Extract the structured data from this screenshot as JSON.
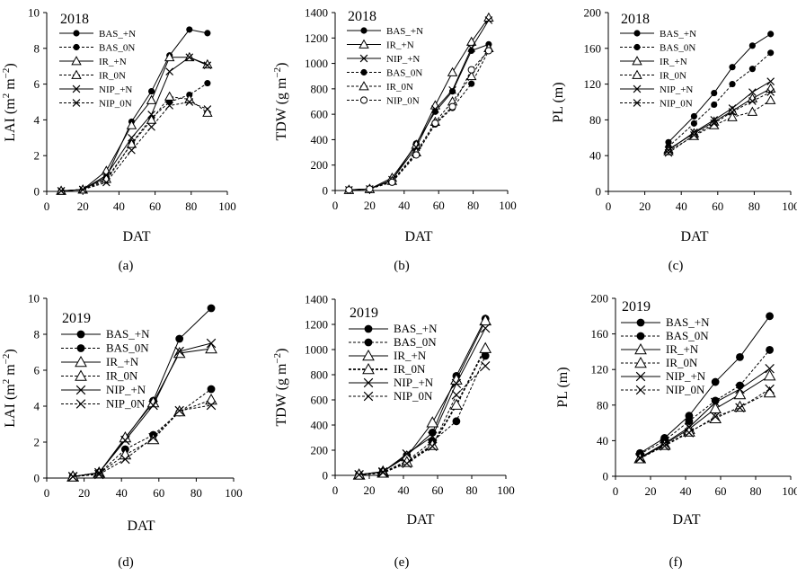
{
  "chart_data": [
    {
      "panel": "a",
      "type": "line",
      "year": "2018",
      "xlabel": "DAT",
      "ylabel": "LAI (m2 m−2)",
      "ylabel_parts": [
        "LAI (m",
        "2",
        " m",
        "−2",
        ")"
      ],
      "xlim": [
        0,
        100
      ],
      "ylim": [
        0,
        10
      ],
      "xticks": [
        0,
        20,
        40,
        60,
        80,
        100
      ],
      "yticks": [
        0,
        2,
        4,
        6,
        8,
        10
      ],
      "series": [
        {
          "name": "BAS_+N",
          "dash": false,
          "marker": "dot",
          "x": [
            8,
            20,
            33,
            47,
            58,
            68,
            79,
            89
          ],
          "y": [
            0.03,
            0.1,
            0.8,
            3.9,
            5.6,
            7.6,
            9.05,
            8.85
          ]
        },
        {
          "name": "BAS_0N",
          "dash": true,
          "marker": "dot",
          "x": [
            8,
            20,
            33,
            47,
            58,
            68,
            79,
            89
          ],
          "y": [
            0.03,
            0.1,
            0.6,
            2.7,
            4.1,
            5.0,
            5.4,
            6.05
          ]
        },
        {
          "name": "IR_+N",
          "dash": false,
          "marker": "triangle",
          "x": [
            8,
            20,
            33,
            47,
            58,
            68,
            79,
            89
          ],
          "y": [
            0.03,
            0.1,
            1.15,
            3.7,
            5.1,
            7.5,
            7.5,
            7.1
          ]
        },
        {
          "name": "IR_0N",
          "dash": true,
          "marker": "triangle",
          "x": [
            8,
            20,
            33,
            47,
            58,
            68,
            79,
            89
          ],
          "y": [
            0.03,
            0.1,
            0.7,
            2.65,
            4.0,
            5.3,
            5.15,
            4.4
          ]
        },
        {
          "name": "NIP_+N",
          "dash": false,
          "marker": "cross",
          "x": [
            8,
            20,
            33,
            47,
            58,
            68,
            79,
            89
          ],
          "y": [
            0.03,
            0.1,
            0.9,
            3.0,
            4.3,
            6.7,
            7.5,
            7.05
          ]
        },
        {
          "name": "NIP_0N",
          "dash": true,
          "marker": "cross",
          "x": [
            8,
            20,
            33,
            47,
            58,
            68,
            79,
            89
          ],
          "y": [
            0.03,
            0.1,
            0.5,
            2.3,
            3.6,
            4.8,
            5.0,
            4.6
          ]
        }
      ]
    },
    {
      "panel": "b",
      "type": "line",
      "year": "2018",
      "xlabel": "DAT",
      "ylabel": "TDW (g m−2)",
      "ylabel_parts": [
        "TDW (g m",
        "−2",
        ")"
      ],
      "xlim": [
        0,
        100
      ],
      "ylim": [
        0,
        1400
      ],
      "xticks": [
        0,
        20,
        40,
        60,
        80,
        100
      ],
      "yticks": [
        0,
        200,
        400,
        600,
        800,
        1000,
        1200,
        1400
      ],
      "series": [
        {
          "name": "BAS_+N",
          "dash": false,
          "marker": "dot",
          "x": [
            8,
            20,
            33,
            47,
            58,
            68,
            79,
            89
          ],
          "y": [
            5,
            12,
            80,
            370,
            620,
            780,
            1100,
            1150
          ]
        },
        {
          "name": "IR_+N",
          "dash": false,
          "marker": "triangle",
          "x": [
            8,
            20,
            33,
            47,
            58,
            68,
            79,
            89
          ],
          "y": [
            5,
            12,
            100,
            360,
            670,
            930,
            1170,
            1360
          ]
        },
        {
          "name": "NIP_+N",
          "dash": false,
          "marker": "cross",
          "x": [
            8,
            20,
            33,
            47,
            58,
            68,
            79,
            89
          ],
          "y": [
            5,
            12,
            85,
            340,
            640,
            790,
            1120,
            1340
          ]
        },
        {
          "name": "BAS_0N",
          "dash": true,
          "marker": "dot",
          "x": [
            8,
            20,
            33,
            47,
            58,
            68,
            79,
            89
          ],
          "y": [
            5,
            12,
            70,
            290,
            520,
            650,
            840,
            1100
          ]
        },
        {
          "name": "IR_0N",
          "dash": true,
          "marker": "triangle",
          "x": [
            8,
            20,
            33,
            47,
            58,
            68,
            79,
            89
          ],
          "y": [
            5,
            12,
            75,
            300,
            540,
            700,
            900,
            1120
          ]
        },
        {
          "name": "NIP_0N",
          "dash": true,
          "marker": "circle",
          "x": [
            8,
            20,
            33,
            47,
            58,
            68,
            79,
            89
          ],
          "y": [
            5,
            12,
            65,
            280,
            530,
            660,
            950,
            1100
          ]
        }
      ]
    },
    {
      "panel": "c",
      "type": "line",
      "year": "2018",
      "xlabel": "DAT",
      "ylabel": "PL (m)",
      "ylabel_parts": [
        "PL (m)"
      ],
      "xlim": [
        0,
        100
      ],
      "ylim": [
        0,
        200
      ],
      "xticks": [
        0,
        20,
        40,
        60,
        80,
        100
      ],
      "yticks": [
        0,
        40,
        80,
        120,
        160,
        200
      ],
      "series": [
        {
          "name": "BAS_+N",
          "dash": false,
          "marker": "dot",
          "x": [
            33,
            47,
            58,
            68,
            79,
            89
          ],
          "y": [
            55,
            84,
            110,
            139,
            163,
            176
          ]
        },
        {
          "name": "BAS_0N",
          "dash": true,
          "marker": "dot",
          "x": [
            33,
            47,
            58,
            68,
            79,
            89
          ],
          "y": [
            50,
            76,
            97,
            120,
            137,
            155
          ]
        },
        {
          "name": "IR_+N",
          "dash": false,
          "marker": "triangle",
          "x": [
            33,
            47,
            58,
            68,
            79,
            89
          ],
          "y": [
            47,
            65,
            78,
            90,
            104,
            115
          ]
        },
        {
          "name": "IR_0N",
          "dash": true,
          "marker": "triangle",
          "x": [
            33,
            47,
            58,
            68,
            79,
            89
          ],
          "y": [
            45,
            62,
            74,
            83,
            89,
            102
          ]
        },
        {
          "name": "NIP_+N",
          "dash": false,
          "marker": "cross",
          "x": [
            33,
            47,
            58,
            68,
            79,
            89
          ],
          "y": [
            46,
            66,
            80,
            93,
            111,
            123
          ]
        },
        {
          "name": "NIP_0N",
          "dash": true,
          "marker": "cross",
          "x": [
            33,
            47,
            58,
            68,
            79,
            89
          ],
          "y": [
            43,
            63,
            76,
            89,
            101,
            111
          ]
        }
      ]
    },
    {
      "panel": "d",
      "type": "line",
      "year": "2019",
      "xlabel": "DAT",
      "ylabel": "LAI (m2 m−2)",
      "ylabel_parts": [
        "LAI (m",
        "2",
        " m",
        "−2",
        ")"
      ],
      "xlim": [
        0,
        100
      ],
      "ylim": [
        0,
        10
      ],
      "xticks": [
        0,
        20,
        40,
        60,
        80,
        100
      ],
      "yticks": [
        0,
        2,
        4,
        6,
        8,
        10
      ],
      "series": [
        {
          "name": "BAS_+N",
          "dash": false,
          "marker": "dot",
          "x": [
            14,
            28,
            42,
            57,
            71,
            88
          ],
          "y": [
            0.08,
            0.3,
            2.2,
            4.3,
            7.75,
            9.45
          ]
        },
        {
          "name": "BAS_0N",
          "dash": true,
          "marker": "dot",
          "x": [
            14,
            28,
            42,
            57,
            71,
            88
          ],
          "y": [
            0.08,
            0.25,
            1.6,
            2.4,
            3.65,
            4.95
          ]
        },
        {
          "name": "IR_+N",
          "dash": false,
          "marker": "triangle",
          "x": [
            14,
            28,
            42,
            57,
            71,
            88
          ],
          "y": [
            0.08,
            0.3,
            2.25,
            4.2,
            6.95,
            7.2
          ]
        },
        {
          "name": "IR_0N",
          "dash": true,
          "marker": "triangle",
          "x": [
            14,
            28,
            42,
            57,
            71,
            88
          ],
          "y": [
            0.08,
            0.25,
            1.3,
            2.15,
            3.7,
            4.35
          ]
        },
        {
          "name": "NIP_+N",
          "dash": false,
          "marker": "cross",
          "x": [
            14,
            28,
            42,
            57,
            71,
            88
          ],
          "y": [
            0.08,
            0.3,
            2.1,
            4.05,
            7.05,
            7.5
          ]
        },
        {
          "name": "NIP_0N",
          "dash": true,
          "marker": "cross",
          "x": [
            14,
            28,
            42,
            57,
            71,
            88
          ],
          "y": [
            0.08,
            0.2,
            1.05,
            2.25,
            3.75,
            4.05
          ]
        }
      ]
    },
    {
      "panel": "e",
      "type": "line",
      "year": "2019",
      "xlabel": "DAT",
      "ylabel": "TDW (g m−2)",
      "ylabel_parts": [
        "TDW (g m",
        "−2",
        ")"
      ],
      "xlim": [
        0,
        100
      ],
      "ylim": [
        0,
        1400
      ],
      "xticks": [
        0,
        20,
        40,
        60,
        80,
        100
      ],
      "yticks": [
        0,
        200,
        400,
        600,
        800,
        1000,
        1200,
        1400
      ],
      "series": [
        {
          "name": "BAS_+N",
          "dash": false,
          "marker": "dot",
          "x": [
            14,
            28,
            42,
            57,
            71,
            88
          ],
          "y": [
            5,
            30,
            160,
            340,
            790,
            1245
          ]
        },
        {
          "name": "BAS_0N",
          "dash": true,
          "marker": "dot",
          "x": [
            14,
            28,
            42,
            57,
            71,
            88
          ],
          "y": [
            5,
            25,
            115,
            270,
            430,
            950
          ]
        },
        {
          "name": "IR_+N",
          "dash": false,
          "marker": "triangle",
          "x": [
            14,
            28,
            42,
            57,
            71,
            88
          ],
          "y": [
            5,
            30,
            150,
            420,
            760,
            1230
          ]
        },
        {
          "name": "IR_0N",
          "dash": true,
          "bold": true,
          "marker": "triangle",
          "x": [
            14,
            28,
            42,
            57,
            71,
            88
          ],
          "y": [
            5,
            20,
            105,
            240,
            560,
            1010
          ]
        },
        {
          "name": "NIP_+N",
          "dash": false,
          "marker": "cross",
          "x": [
            14,
            28,
            42,
            57,
            71,
            88
          ],
          "y": [
            5,
            28,
            170,
            310,
            730,
            1170
          ]
        },
        {
          "name": "NIP_0N",
          "dash": true,
          "marker": "cross",
          "x": [
            14,
            28,
            42,
            57,
            71,
            88
          ],
          "y": [
            5,
            22,
            95,
            230,
            640,
            870
          ]
        }
      ]
    },
    {
      "panel": "f",
      "type": "line",
      "year": "2019",
      "xlabel": "DAT",
      "ylabel": "PL (m)",
      "ylabel_parts": [
        "PL (m)"
      ],
      "xlim": [
        0,
        100
      ],
      "ylim": [
        0,
        200
      ],
      "xticks": [
        0,
        20,
        40,
        60,
        80,
        100
      ],
      "yticks": [
        0,
        40,
        80,
        120,
        160,
        200
      ],
      "series": [
        {
          "name": "BAS_+N",
          "dash": false,
          "marker": "dot",
          "x": [
            14,
            28,
            42,
            57,
            71,
            88
          ],
          "y": [
            26,
            43,
            68,
            106,
            134,
            180
          ]
        },
        {
          "name": "BAS_0N",
          "dash": true,
          "marker": "dot",
          "x": [
            14,
            28,
            42,
            57,
            71,
            88
          ],
          "y": [
            25,
            40,
            62,
            85,
            102,
            142
          ]
        },
        {
          "name": "IR_+N",
          "dash": false,
          "marker": "triangle",
          "x": [
            14,
            28,
            42,
            57,
            71,
            88
          ],
          "y": [
            20,
            36,
            53,
            76,
            92,
            113
          ]
        },
        {
          "name": "IR_0N",
          "dash": true,
          "marker": "triangle",
          "x": [
            14,
            28,
            42,
            57,
            71,
            88
          ],
          "y": [
            20,
            35,
            50,
            65,
            78,
            94
          ]
        },
        {
          "name": "NIP_+N",
          "dash": false,
          "marker": "cross",
          "x": [
            14,
            28,
            42,
            57,
            71,
            88
          ],
          "y": [
            21,
            37,
            55,
            83,
            98,
            121
          ]
        },
        {
          "name": "NIP_0N",
          "dash": true,
          "marker": "cross",
          "x": [
            14,
            28,
            42,
            57,
            71,
            88
          ],
          "y": [
            20,
            34,
            49,
            67,
            77,
            98
          ]
        }
      ]
    }
  ],
  "panel_labels": [
    "(a)",
    "(b)",
    "(c)",
    "(d)",
    "(e)",
    "(f)"
  ]
}
